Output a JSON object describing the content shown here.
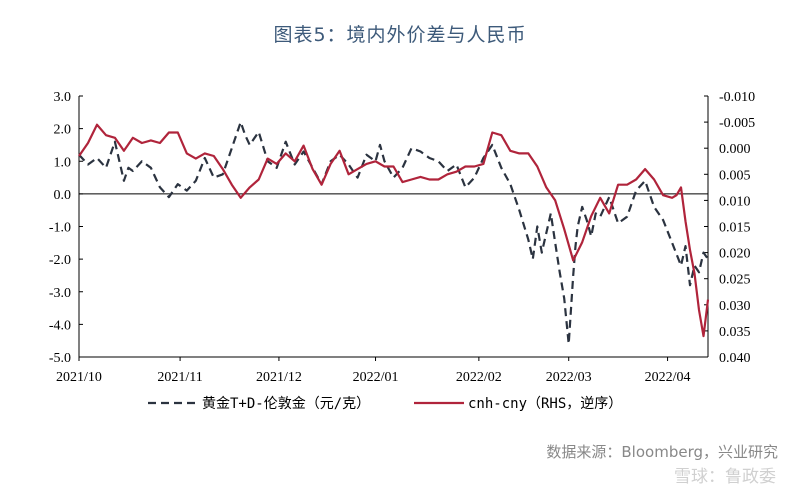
{
  "title": "图表5：境内外价差与人民币",
  "source": "数据来源：Bloomberg，兴业研究",
  "watermark": "雪球：鲁政委",
  "colors": {
    "gold_series": "#2b3340",
    "fx_series": "#b0243b",
    "title": "#3d5a7a"
  },
  "chart_data": {
    "type": "line",
    "title": "图表5：境内外价差与人民币",
    "x_labels": [
      "2021/10",
      "2021/11",
      "2021/12",
      "2022/01",
      "2022/02",
      "2022/03",
      "2022/04"
    ],
    "x_range": [
      0,
      140
    ],
    "x_label_positions": [
      0,
      22.5,
      44.5,
      66,
      89,
      109,
      131
    ],
    "y_left": {
      "ticks": [
        "3.0",
        "2.0",
        "1.0",
        "0.0",
        "-1.0",
        "-2.0",
        "-3.0",
        "-4.0",
        "-5.0"
      ],
      "range": [
        -5,
        3
      ]
    },
    "y_right": {
      "ticks": [
        "-0.010",
        "-0.005",
        "0.000",
        "0.005",
        "0.010",
        "0.015",
        "0.020",
        "0.025",
        "0.030",
        "0.035",
        "0.040"
      ],
      "range": [
        -0.01,
        0.04
      ],
      "reversed": true
    },
    "series": [
      {
        "name": "黄金T+D-伦敦金（元/克）",
        "axis": "left",
        "style": "dashed",
        "x": [
          0,
          2,
          4,
          6,
          8,
          10,
          11,
          12,
          14,
          16,
          18,
          20,
          22,
          24,
          26,
          28,
          30,
          32,
          34,
          36,
          37,
          38,
          40,
          42,
          44,
          46,
          48,
          50,
          52,
          54,
          56,
          58,
          60,
          62,
          64,
          66,
          67,
          68,
          70,
          72,
          74,
          76,
          78,
          80,
          82,
          84,
          86,
          88,
          90,
          92,
          94,
          96,
          98,
          100,
          101,
          102,
          103,
          104,
          105,
          106,
          107,
          108,
          109,
          110,
          110.5,
          111,
          112,
          113,
          114,
          115,
          116,
          118,
          120,
          122,
          124,
          126,
          128,
          130,
          132,
          134,
          135,
          136,
          137,
          138,
          139,
          140
        ],
        "values": [
          1.2,
          0.9,
          1.1,
          0.8,
          1.6,
          0.4,
          0.8,
          0.7,
          1.0,
          0.8,
          0.2,
          -0.1,
          0.3,
          0.1,
          0.4,
          1.1,
          0.5,
          0.6,
          1.4,
          2.2,
          1.8,
          1.5,
          1.9,
          1.0,
          0.8,
          1.6,
          0.9,
          1.3,
          0.8,
          0.3,
          1.0,
          1.2,
          0.9,
          0.5,
          1.2,
          1.0,
          1.5,
          1.0,
          0.5,
          0.8,
          1.4,
          1.3,
          1.1,
          1.0,
          0.7,
          0.9,
          0.2,
          0.5,
          1.1,
          1.5,
          0.8,
          0.3,
          -0.5,
          -1.4,
          -2.0,
          -1.0,
          -1.8,
          -1.2,
          -0.6,
          -1.5,
          -2.4,
          -3.2,
          -4.6,
          -2.5,
          -1.6,
          -1.0,
          -0.4,
          -0.8,
          -1.3,
          -0.6,
          -0.7,
          -0.1,
          -0.9,
          -0.7,
          0.1,
          0.4,
          -0.4,
          -0.8,
          -1.5,
          -2.2,
          -1.6,
          -2.8,
          -2.2,
          -2.4,
          -1.8,
          -2.0
        ]
      },
      {
        "name": "cnh-cny（RHS，逆序）",
        "axis": "right",
        "style": "solid",
        "x": [
          0,
          2,
          4,
          6,
          8,
          10,
          12,
          14,
          16,
          18,
          20,
          22,
          24,
          26,
          28,
          30,
          32,
          34,
          36,
          38,
          40,
          42,
          44,
          46,
          48,
          50,
          52,
          54,
          56,
          58,
          60,
          62,
          64,
          66,
          68,
          70,
          72,
          74,
          76,
          78,
          80,
          82,
          84,
          86,
          88,
          90,
          92,
          94,
          96,
          98,
          100,
          102,
          104,
          106,
          108,
          110,
          112,
          114,
          116,
          118,
          120,
          122,
          124,
          126,
          128,
          130,
          132,
          133,
          134,
          135,
          136,
          137,
          138,
          139,
          140
        ],
        "values": [
          0.0015,
          -0.001,
          -0.0045,
          -0.0025,
          -0.002,
          0.0005,
          -0.002,
          -0.001,
          -0.0015,
          -0.001,
          -0.003,
          -0.003,
          0.001,
          0.002,
          0.001,
          0.0015,
          0.004,
          0.007,
          0.0095,
          0.0075,
          0.006,
          0.002,
          0.003,
          0.001,
          0.0025,
          -0.0005,
          0.004,
          0.007,
          0.003,
          0.0005,
          0.005,
          0.004,
          0.003,
          0.0025,
          0.0035,
          0.0035,
          0.0065,
          0.006,
          0.0055,
          0.006,
          0.006,
          0.005,
          0.0045,
          0.0035,
          0.0035,
          0.003,
          -0.003,
          -0.0025,
          0.0005,
          0.001,
          0.001,
          0.0035,
          0.0075,
          0.01,
          0.0155,
          0.0215,
          0.018,
          0.013,
          0.0095,
          0.0125,
          0.007,
          0.007,
          0.006,
          0.004,
          0.006,
          0.009,
          0.0095,
          0.009,
          0.0075,
          0.014,
          0.0195,
          0.024,
          0.031,
          0.036,
          0.029
        ]
      }
    ],
    "legend": {
      "placement": "bottom"
    },
    "grid": false
  }
}
